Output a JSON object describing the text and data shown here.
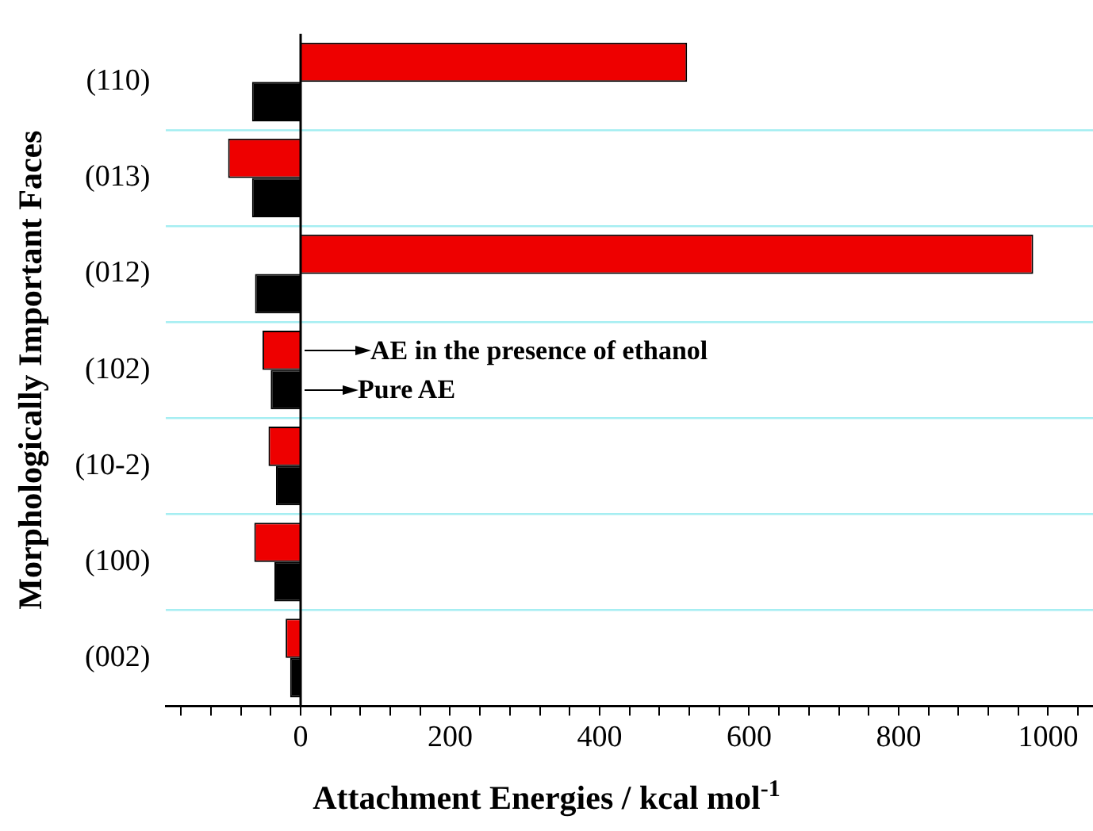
{
  "chart_data": {
    "type": "bar",
    "orientation": "horizontal",
    "xlabel": "Attachment Energies / kcal mol$^{-1}$",
    "ylabel": "Morphologically Important Faces",
    "categories": [
      "(110)",
      "(013)",
      "(012)",
      "(102)",
      "(10-2)",
      "(100)",
      "(002)"
    ],
    "series": [
      {
        "color": "#ee0000",
        "values": [
          517,
          -97,
          980,
          -51,
          -43,
          -62,
          -20
        ]
      },
      {
        "color": "#000000",
        "values": [
          -65,
          -65,
          -61,
          -40,
          -33,
          -35,
          -14
        ]
      }
    ],
    "xlim": [
      -180,
      1060
    ],
    "xticks": [
      {
        "value": -160,
        "label": null
      },
      {
        "value": -120,
        "label": null
      },
      {
        "value": -80,
        "label": null
      },
      {
        "value": -40,
        "label": null
      },
      0,
      {
        "value": 40,
        "label": null
      },
      {
        "value": 80,
        "label": null
      },
      {
        "value": 120,
        "label": null
      },
      {
        "value": 160,
        "label": null
      },
      200,
      {
        "value": 240,
        "label": null
      },
      {
        "value": 280,
        "label": null
      },
      {
        "value": 320,
        "label": null
      },
      {
        "value": 360,
        "label": null
      },
      400,
      {
        "value": 440,
        "label": null
      },
      {
        "value": 480,
        "label": null
      },
      {
        "value": 520,
        "label": null
      },
      {
        "value": 560,
        "label": null
      },
      600,
      {
        "value": 640,
        "label": null
      },
      {
        "value": 680,
        "label": null
      },
      {
        "value": 720,
        "label": null
      },
      {
        "value": 760,
        "label": null
      },
      800,
      {
        "value": 840,
        "label": null
      },
      {
        "value": 880,
        "label": null
      },
      {
        "value": 920,
        "label": null
      },
      {
        "value": 960,
        "label": null
      },
      1000,
      {
        "value": 1040,
        "label": null
      }
    ],
    "annotations": [
      {
        "text": "AE in the presence of ethanol",
        "x": 0,
        "y": "(102)"
      },
      {
        "text": "Pure AE",
        "x": 0,
        "y": "(102)"
      }
    ],
    "grid": "y",
    "legend": false
  }
}
